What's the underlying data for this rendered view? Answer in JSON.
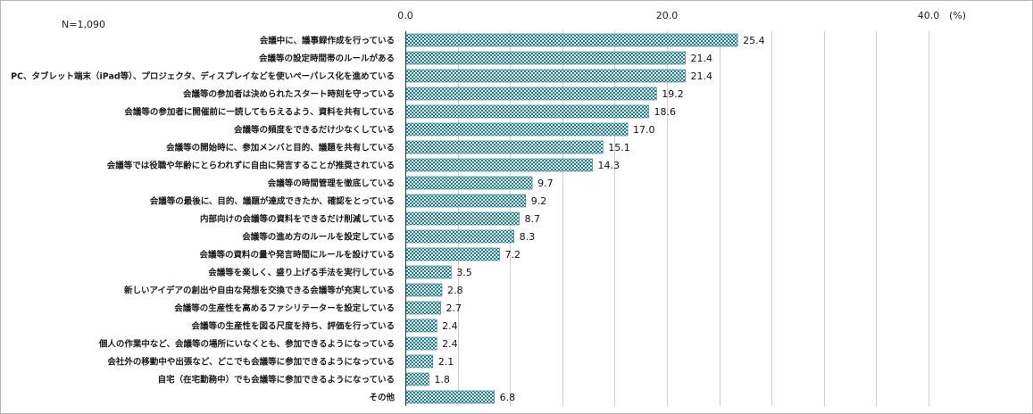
{
  "chart_data": {
    "type": "bar",
    "orientation": "horizontal",
    "n_label": "N=1,090",
    "unit": "(%)",
    "xlim": [
      0,
      40
    ],
    "ticks": [
      "0.0",
      "20.0",
      "40.0"
    ],
    "grid": true,
    "bar_fill": "#1f7a9b",
    "bar_fill_light": "#e6f4f8",
    "categories": [
      "会議中に、議事録作成を行っている",
      "会議等の設定時間帯のルールがある",
      "PC、タブレット端末（iPad等）、プロジェクタ、ディスプレイなどを使いペーパレス化を進めている",
      "会議等の参加者は決められたスタート時刻を守っている",
      "会議等の参加者に開催前に一読してもらえるよう、資料を共有している",
      "会議等の頻度をできるだけ少なくしている",
      "会議等の開始時に、参加メンバと目的、議題を共有している",
      "会議等では役職や年齢にとらわれずに自由に発言することが推奨されている",
      "会議等の時間管理を徹底している",
      "会議等の最後に、目的、議題が達成できたか、確認をとっている",
      "内部向けの会議等の資料をできるだけ削減している",
      "会議等の進め方のルールを設定している",
      "会議等の資料の量や発言時間にルールを設けている",
      "会議等を楽しく、盛り上げる手法を実行している",
      "新しいアイデアの創出や自由な発想を交換できる会議等が充実している",
      "会議等の生産性を高めるファシリテーターを設定している",
      "会議等の生産性を図る尺度を持ち、評価を行っている",
      "個人の作業中など、会議等の場所にいなくとも、参加できるようになっている",
      "会社外の移動中や出張など、どこでも会議等に参加できるようになっている",
      "自宅（在宅勤務中）でも会議等に参加できるようになっている",
      "その他"
    ],
    "values": [
      25.4,
      21.4,
      21.4,
      19.2,
      18.6,
      17.0,
      15.1,
      14.3,
      9.7,
      9.2,
      8.7,
      8.3,
      7.2,
      3.5,
      2.8,
      2.7,
      2.4,
      2.4,
      2.1,
      1.8,
      6.8
    ],
    "value_labels": [
      "25.4",
      "21.4",
      "21.4",
      "19.2",
      "18.6",
      "17.0",
      "15.1",
      "14.3",
      "9.7",
      "9.2",
      "8.7",
      "8.3",
      "7.2",
      "3.5",
      "2.8",
      "2.7",
      "2.4",
      "2.4",
      "2.1",
      "1.8",
      "6.8"
    ]
  }
}
